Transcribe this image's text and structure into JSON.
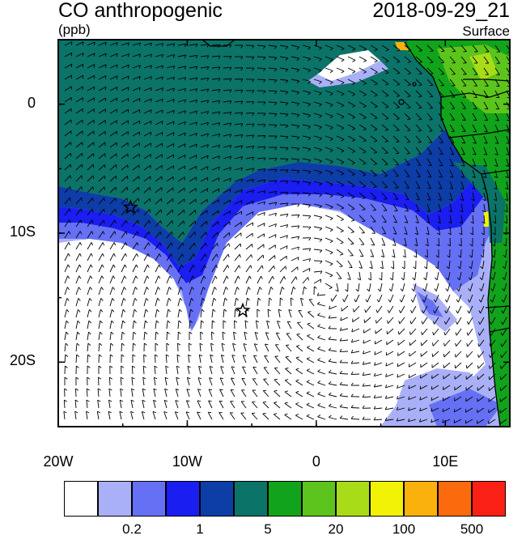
{
  "title": {
    "left": "CO anthropogenic",
    "right": "2018-09-29_21",
    "units": "(ppb)",
    "level": "Surface"
  },
  "map": {
    "lat_ticks": [
      {
        "label": "0",
        "lat": 0
      },
      {
        "label": "10S",
        "lat": -10
      },
      {
        "label": "20S",
        "lat": -20
      }
    ],
    "lon_ticks": [
      {
        "label": "20W",
        "lon": -20
      },
      {
        "label": "10W",
        "lon": -10
      },
      {
        "label": "0",
        "lon": 0
      },
      {
        "label": "10E",
        "lon": 10
      }
    ],
    "extent": {
      "lon_min": -20,
      "lon_max": 15,
      "lat_min": -25,
      "lat_max": 5
    },
    "markers": [
      {
        "name": "star-marker-1",
        "lon": -14.4,
        "lat": -8.0
      },
      {
        "name": "star-marker-2",
        "lon": -5.7,
        "lat": -16.0
      }
    ]
  },
  "colorbar": {
    "colors": [
      "#ffffff",
      "#aab0f7",
      "#6670f4",
      "#1a1ef0",
      "#0d3da6",
      "#0b7368",
      "#11a31b",
      "#5cc41c",
      "#a9dc18",
      "#f2f207",
      "#fbb10b",
      "#fb6a0d",
      "#fb2015"
    ],
    "labels": [
      "0.2",
      "1",
      "5",
      "20",
      "100",
      "500"
    ]
  }
}
